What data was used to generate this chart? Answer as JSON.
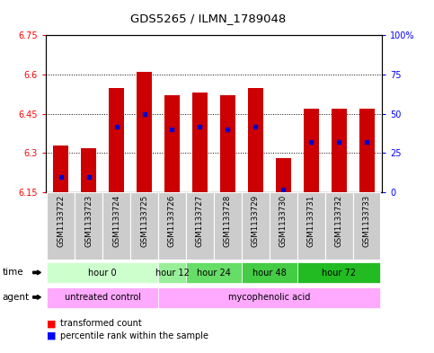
{
  "title": "GDS5265 / ILMN_1789048",
  "samples": [
    "GSM1133722",
    "GSM1133723",
    "GSM1133724",
    "GSM1133725",
    "GSM1133726",
    "GSM1133727",
    "GSM1133728",
    "GSM1133729",
    "GSM1133730",
    "GSM1133731",
    "GSM1133732",
    "GSM1133733"
  ],
  "bar_values": [
    6.33,
    6.32,
    6.55,
    6.61,
    6.52,
    6.53,
    6.52,
    6.55,
    6.28,
    6.47,
    6.47,
    6.47
  ],
  "percentile_values": [
    10,
    10,
    42,
    50,
    40,
    42,
    40,
    42,
    2,
    32,
    32,
    32
  ],
  "y_min": 6.15,
  "y_max": 6.75,
  "y_ticks": [
    6.15,
    6.3,
    6.45,
    6.6,
    6.75
  ],
  "y_tick_labels": [
    "6.15",
    "6.3",
    "6.45",
    "6.6",
    "6.75"
  ],
  "right_y_ticks": [
    0,
    25,
    50,
    75,
    100
  ],
  "right_y_tick_labels": [
    "0",
    "25",
    "50",
    "75",
    "100%"
  ],
  "bar_color": "#cc0000",
  "dot_color": "#0000cc",
  "bar_width": 0.55,
  "time_groups": [
    {
      "label": "hour 0",
      "start": 0,
      "end": 3,
      "color": "#ccffcc"
    },
    {
      "label": "hour 12",
      "start": 4,
      "end": 4,
      "color": "#99ee99"
    },
    {
      "label": "hour 24",
      "start": 5,
      "end": 6,
      "color": "#66dd66"
    },
    {
      "label": "hour 48",
      "start": 7,
      "end": 8,
      "color": "#44cc44"
    },
    {
      "label": "hour 72",
      "start": 9,
      "end": 11,
      "color": "#22bb22"
    }
  ],
  "agent_groups": [
    {
      "label": "untreated control",
      "start": 0,
      "end": 3,
      "color": "#ffaaff"
    },
    {
      "label": "mycophenolic acid",
      "start": 4,
      "end": 11,
      "color": "#ffaaff"
    }
  ],
  "sample_bg_color": "#cccccc",
  "legend_red": "transformed count",
  "legend_blue": "percentile rank within the sample"
}
